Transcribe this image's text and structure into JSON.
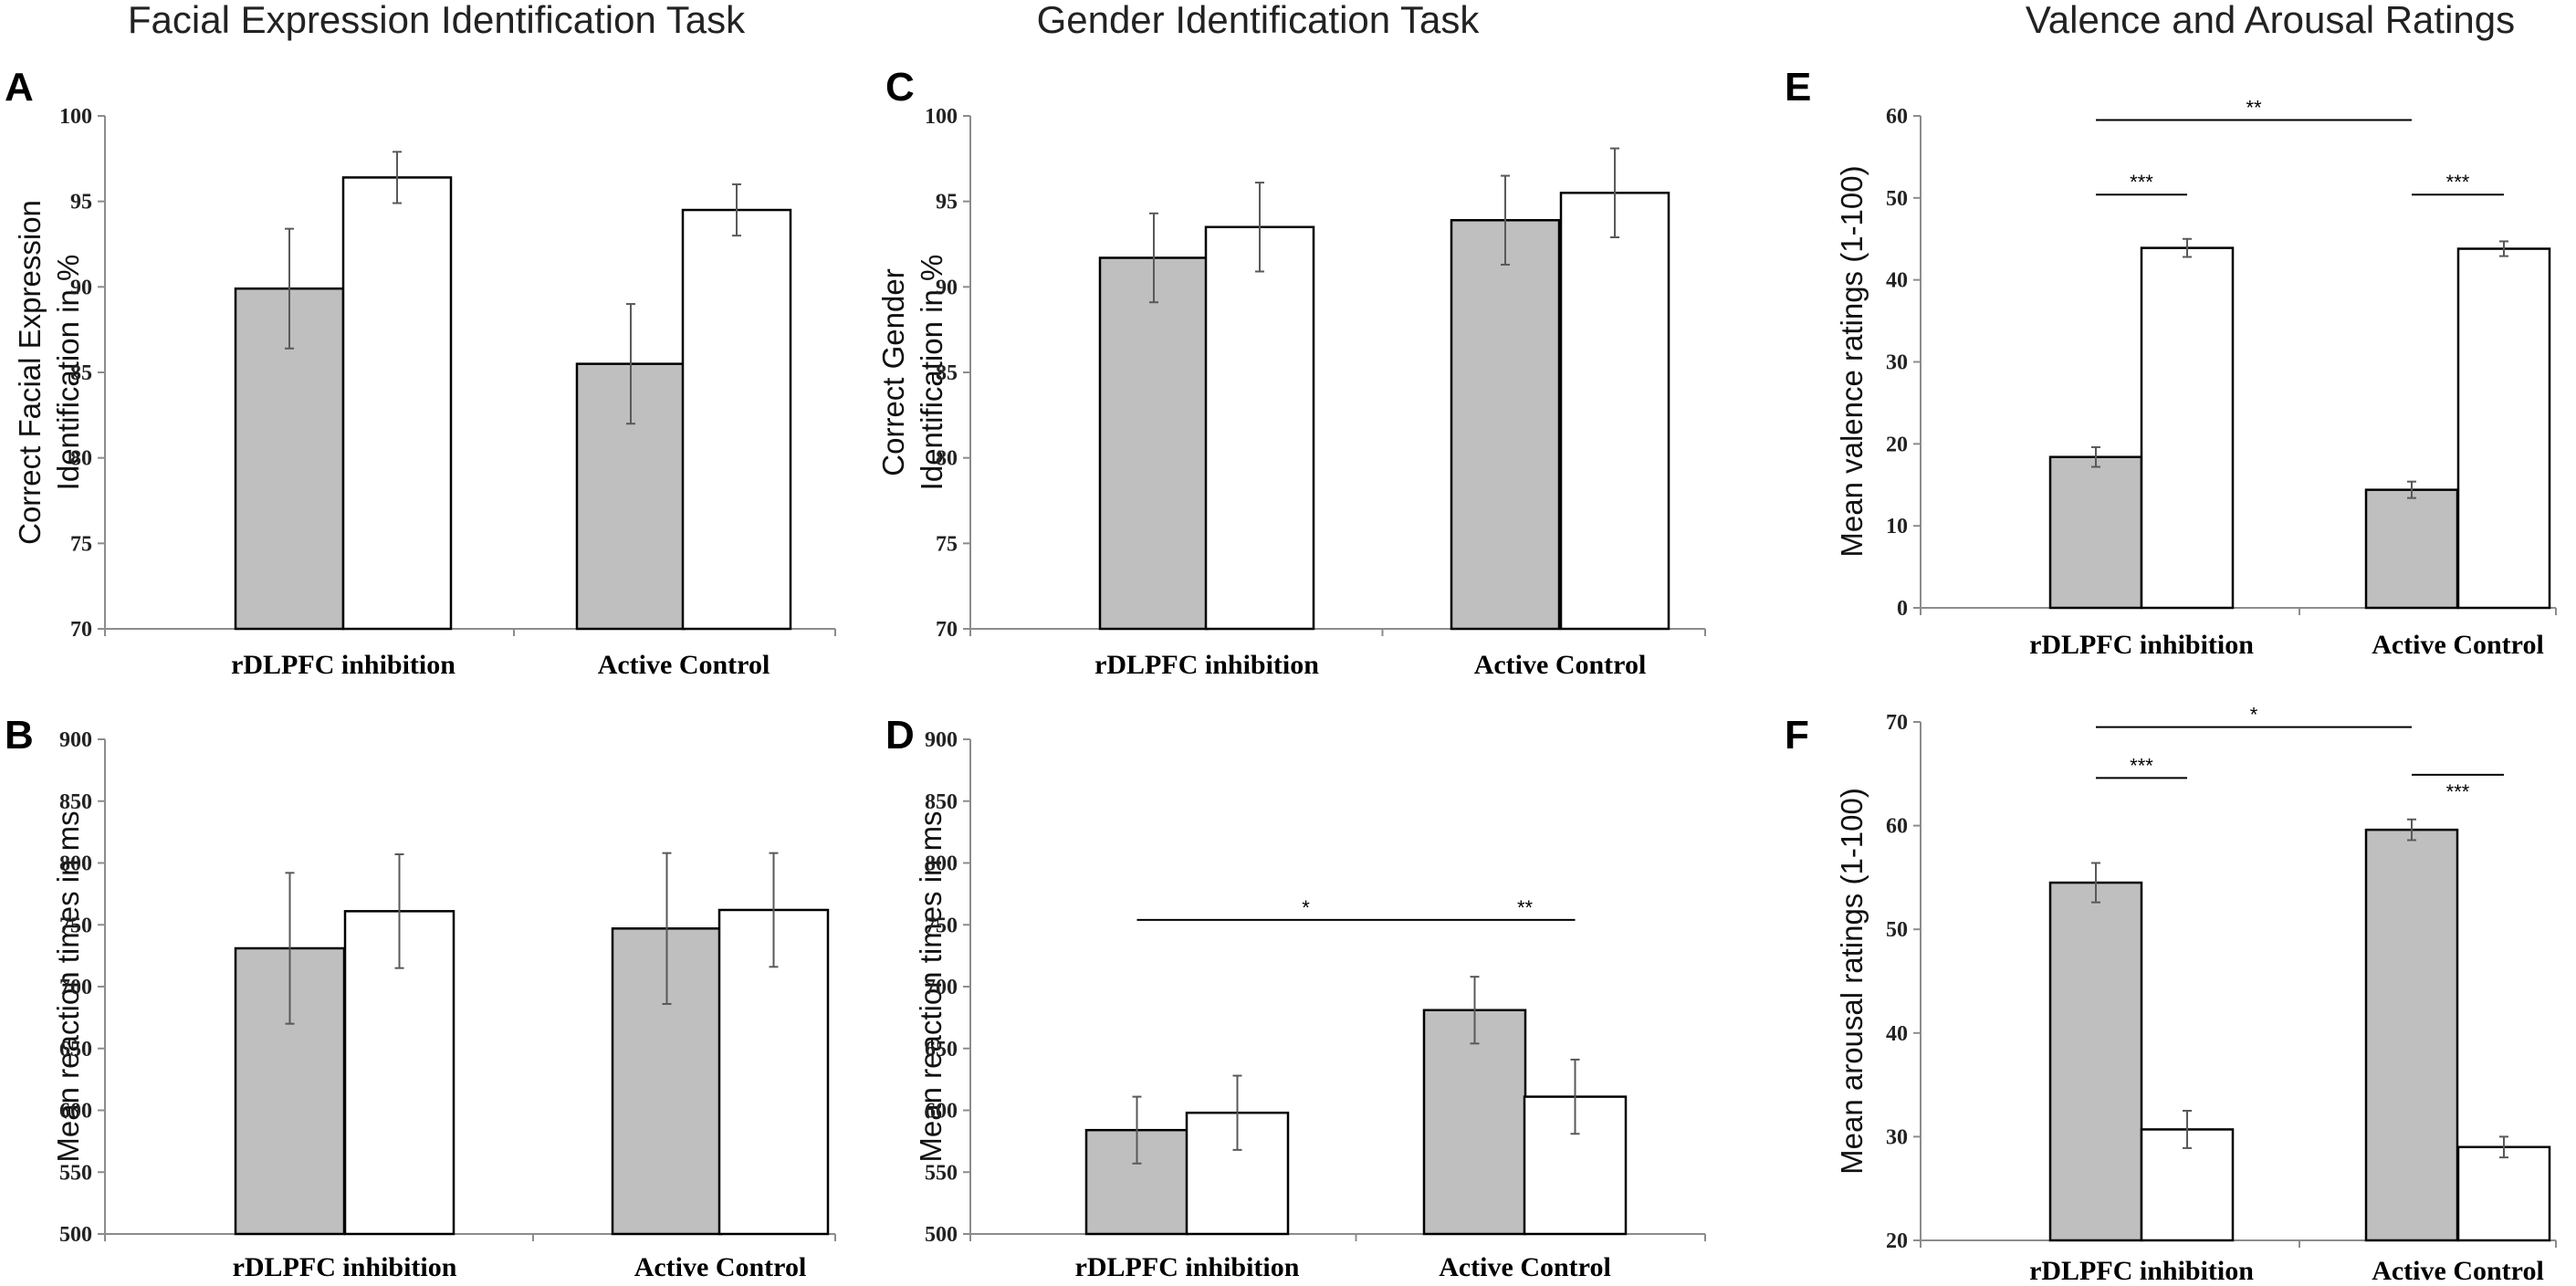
{
  "column_titles": [
    "Facial Expression Identification Task",
    "Gender Identification Task",
    "Valence and Arousal Ratings"
  ],
  "colors": {
    "bar_grey": "#bfbfbf",
    "bar_white": "#ffffff",
    "stroke": "#000000",
    "axis": "#8c8c8c",
    "error": "#595959"
  },
  "chart_data": [
    {
      "id": "A",
      "type": "bar",
      "letter": "A",
      "ylabel": [
        "Correct Facial Expression",
        "Identification in %"
      ],
      "ylim": [
        70,
        100
      ],
      "yticks": [
        70,
        75,
        80,
        85,
        90,
        95,
        100
      ],
      "categories": [
        "rDLPFC inhibition",
        "Active Control"
      ],
      "series": [
        {
          "name": "grey",
          "values": [
            89.9,
            85.5
          ],
          "errors": [
            3.5,
            3.5
          ]
        },
        {
          "name": "white",
          "values": [
            96.4,
            94.5
          ],
          "errors": [
            1.5,
            1.5
          ]
        }
      ],
      "significance": []
    },
    {
      "id": "B",
      "type": "bar",
      "letter": "B",
      "ylabel": [
        "Mean reaction times in ms"
      ],
      "ylim": [
        500,
        900
      ],
      "yticks": [
        500,
        550,
        600,
        650,
        700,
        750,
        800,
        850,
        900
      ],
      "categories": [
        "rDLPFC inhibition",
        "Active Control"
      ],
      "series": [
        {
          "name": "grey",
          "values": [
            731,
            747
          ],
          "errors": [
            61,
            61
          ]
        },
        {
          "name": "white",
          "values": [
            761,
            762
          ],
          "errors": [
            46,
            46
          ]
        }
      ],
      "significance": []
    },
    {
      "id": "C",
      "type": "bar",
      "letter": "C",
      "ylabel": [
        "Correct Gender",
        "Identification in %"
      ],
      "ylim": [
        70,
        100
      ],
      "yticks": [
        70,
        75,
        80,
        85,
        90,
        95,
        100
      ],
      "categories": [
        "rDLPFC inhibition",
        "Active Control"
      ],
      "series": [
        {
          "name": "grey",
          "values": [
            91.7,
            93.9
          ],
          "errors": [
            2.6,
            2.6
          ]
        },
        {
          "name": "white",
          "values": [
            93.5,
            95.5
          ],
          "errors": [
            2.6,
            2.6
          ]
        }
      ],
      "significance": []
    },
    {
      "id": "D",
      "type": "bar",
      "letter": "D",
      "ylabel": [
        "Mean reaction times in ms"
      ],
      "ylim": [
        500,
        900
      ],
      "yticks": [
        500,
        550,
        600,
        650,
        700,
        750,
        800,
        850,
        900
      ],
      "categories": [
        "rDLPFC inhibition",
        "Active Control"
      ],
      "series": [
        {
          "name": "grey",
          "values": [
            584,
            681
          ],
          "errors": [
            27,
            27
          ]
        },
        {
          "name": "white",
          "values": [
            598,
            611
          ],
          "errors": [
            30,
            30
          ]
        }
      ],
      "significance": [
        {
          "label": "*",
          "y": 754,
          "from": [
            0,
            0
          ],
          "to": [
            1,
            0
          ],
          "label_above": true
        },
        {
          "label": "**",
          "y": 754,
          "from": [
            1,
            0
          ],
          "to": [
            1,
            1
          ],
          "label_above": true
        }
      ]
    },
    {
      "id": "E",
      "type": "bar",
      "letter": "E",
      "ylabel": [
        "Mean valence ratings (1-100)"
      ],
      "ylim": [
        0,
        60
      ],
      "yticks": [
        0,
        10,
        20,
        30,
        40,
        50,
        60
      ],
      "categories": [
        "rDLPFC inhibition",
        "Active Control"
      ],
      "series": [
        {
          "name": "grey",
          "values": [
            18.4,
            14.4
          ],
          "errors": [
            1.2,
            1.0
          ]
        },
        {
          "name": "white",
          "values": [
            43.9,
            43.8
          ],
          "errors": [
            1.1,
            0.9
          ]
        }
      ],
      "significance": [
        {
          "label": "**",
          "y": 59.5,
          "from": [
            0,
            0
          ],
          "to": [
            1,
            0
          ],
          "label_above": true
        },
        {
          "label": "***",
          "y": 50.4,
          "from": [
            0,
            0
          ],
          "to": [
            0,
            1
          ],
          "label_above": true
        },
        {
          "label": "***",
          "y": 50.4,
          "from": [
            1,
            0
          ],
          "to": [
            1,
            1
          ],
          "label_above": true
        }
      ]
    },
    {
      "id": "F",
      "type": "bar",
      "letter": "F",
      "ylabel": [
        "Mean arousal ratings (1-100)"
      ],
      "ylim": [
        20,
        70
      ],
      "yticks": [
        20,
        30,
        40,
        50,
        60,
        70
      ],
      "categories": [
        "rDLPFC inhibition",
        "Active Control"
      ],
      "series": [
        {
          "name": "grey",
          "values": [
            54.5,
            59.6
          ],
          "errors": [
            1.9,
            1.0
          ]
        },
        {
          "name": "white",
          "values": [
            30.7,
            29.0
          ],
          "errors": [
            1.8,
            1.0
          ]
        }
      ],
      "significance": [
        {
          "label": "*",
          "y": 69.5,
          "from": [
            0,
            0
          ],
          "to": [
            1,
            0
          ],
          "label_above": true
        },
        {
          "label": "***",
          "y": 64.6,
          "from": [
            0,
            0
          ],
          "to": [
            0,
            1
          ],
          "label_above": true
        },
        {
          "label": "***",
          "y": 64.9,
          "from": [
            1,
            0
          ],
          "to": [
            1,
            1
          ],
          "label_above": false
        }
      ]
    }
  ]
}
